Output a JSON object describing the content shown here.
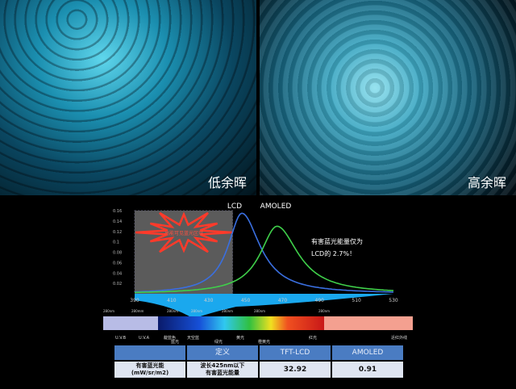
{
  "photos": {
    "left_label": "低余晖",
    "right_label": "高余晖"
  },
  "chart_data": {
    "type": "line",
    "x_ticks": [
      390,
      410,
      430,
      450,
      470,
      490,
      510,
      530
    ],
    "y_ticks": [
      0.02,
      0.04,
      0.06,
      0.08,
      0.1,
      0.12,
      0.14,
      0.16
    ],
    "xlim": [
      390,
      530
    ],
    "ylim": [
      0,
      0.16
    ],
    "series": [
      {
        "name": "LCD",
        "color": "#3a6fe0",
        "peak_x": 448,
        "peak_y": 0.155
      },
      {
        "name": "AMOLED",
        "color": "#3fcf4a",
        "peak_x": 467,
        "peak_y": 0.13
      }
    ],
    "highlight_region": {
      "x": [
        390,
        443
      ],
      "label": "高能可见蓝光区域"
    },
    "annotation": [
      "有害蓝光能量仅为",
      "LCD的 2.7%！"
    ]
  },
  "spectrum": {
    "nm_labels": [
      "280nm",
      "280mm",
      "280nm",
      "280nm",
      "280nm",
      "280nm",
      "280nm"
    ],
    "bands": [
      "U.V.B",
      "U.V.A",
      "靛蓝色",
      "天空蓝",
      "黄光",
      "红光",
      "近红外线"
    ],
    "bands_low": [
      "蓝光",
      "绿光",
      "橙黄光"
    ]
  },
  "table": {
    "headers": [
      "",
      "定义",
      "TFT-LCD",
      "AMOLED"
    ],
    "row": [
      "有害蓝光能\n(mW/sr/m2)",
      "波长425nm以下\n有害蓝光能量",
      "32.92",
      "0.91"
    ]
  }
}
